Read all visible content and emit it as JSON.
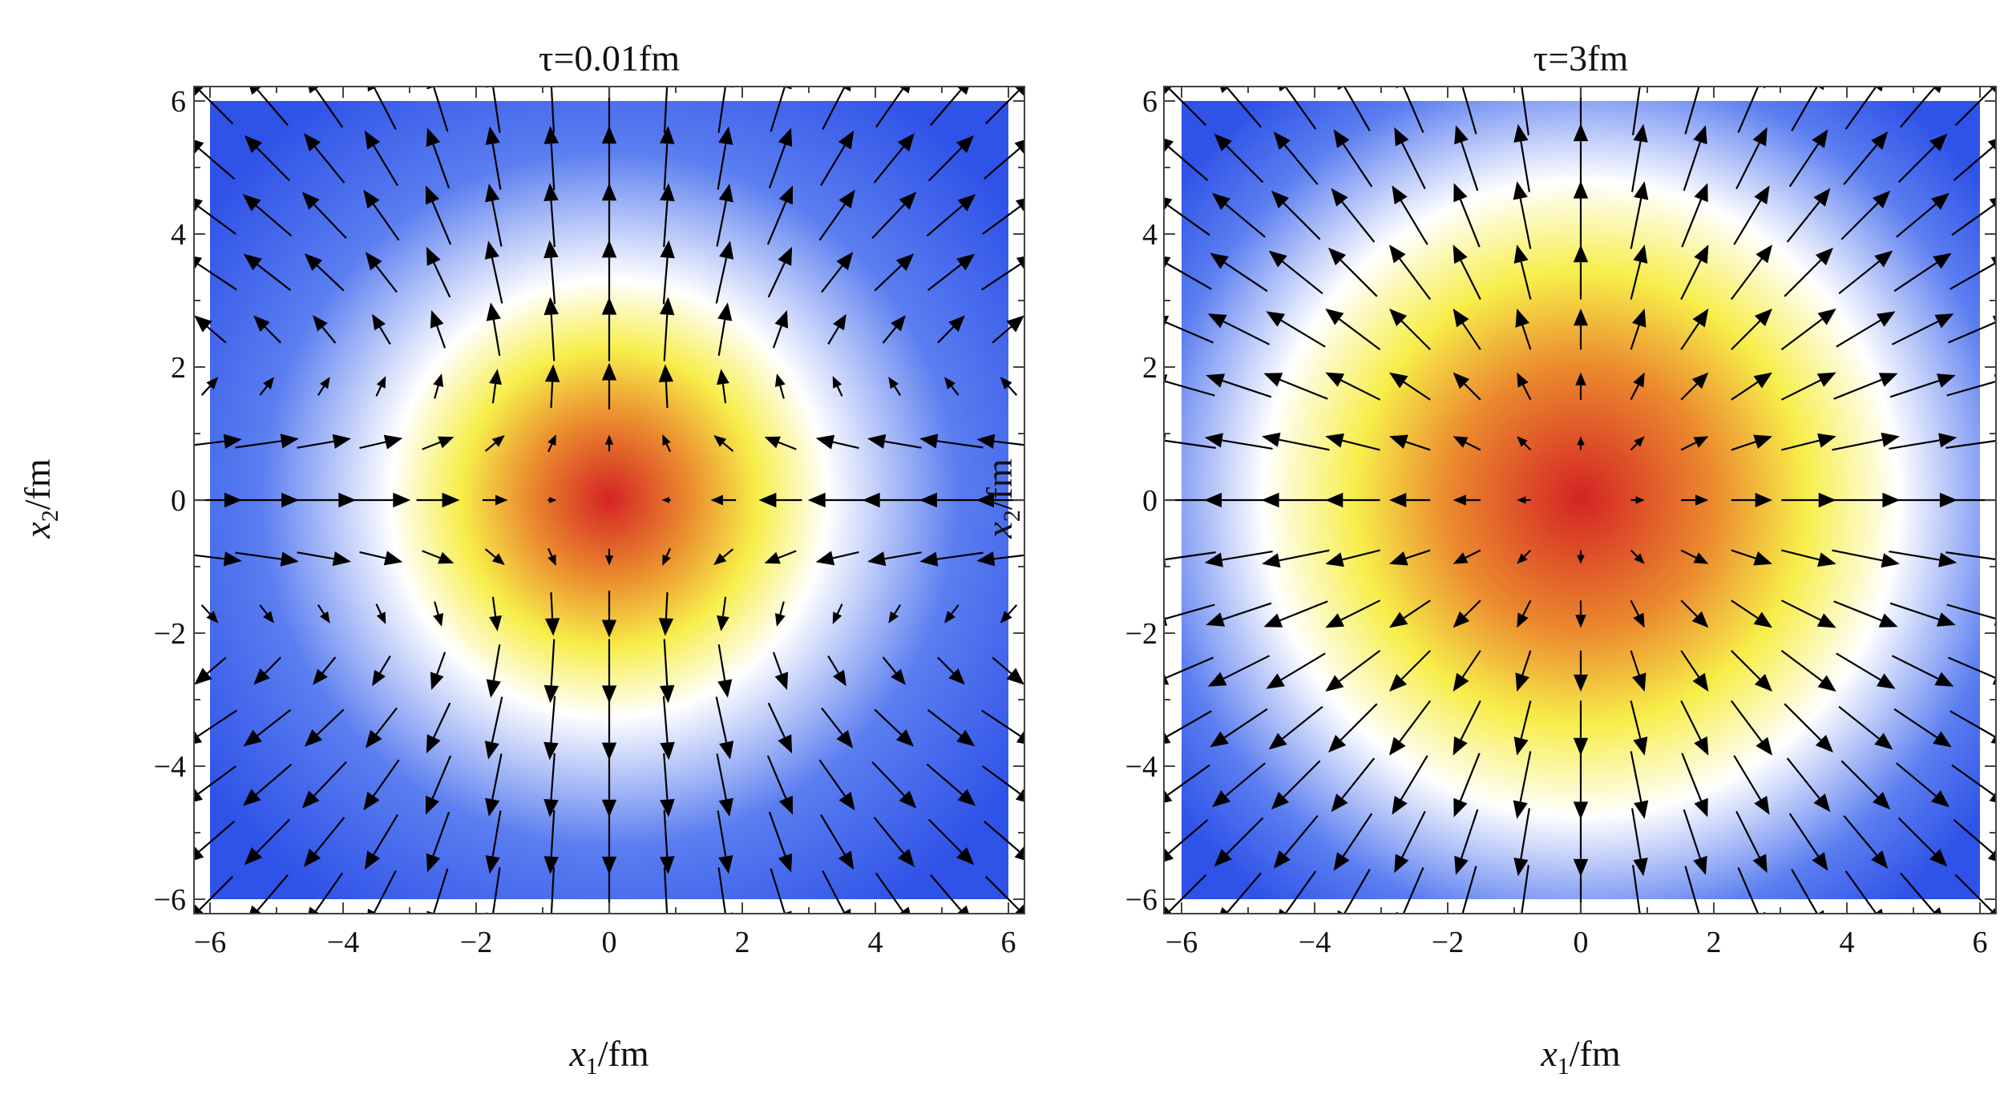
{
  "chart_data": [
    {
      "type": "heatmap",
      "title": "τ=0.01fm",
      "xlabel": {
        "base": "x",
        "sub": "1",
        "unit": "/fm"
      },
      "ylabel": {
        "base": "x",
        "sub": "2",
        "unit": "/fm"
      },
      "xlim": [
        -6,
        6
      ],
      "ylim": [
        -6,
        6
      ],
      "xticks": [
        "−6",
        "−4",
        "−2",
        "0",
        "2",
        "4",
        "6"
      ],
      "yticks": [
        "6",
        "4",
        "2",
        "0",
        "−2",
        "−4",
        "−6"
      ],
      "colormap": [
        "#2f52e8",
        "#ffffff",
        "#f6ea45",
        "#d62b2b"
      ],
      "density": {
        "center": [
          0,
          0
        ],
        "sigma_fm": 1.3
      },
      "vector_field": "quadrupolar flow: inward along x1 near x2≈0, outward along x2 near x1≈0, outward radial elsewhere"
    },
    {
      "type": "heatmap",
      "title": "τ=3fm",
      "xlabel": {
        "base": "x",
        "sub": "1",
        "unit": "/fm"
      },
      "ylabel": {
        "base": "x",
        "sub": "2",
        "unit": "/fm"
      },
      "xlim": [
        -6,
        6
      ],
      "ylim": [
        -6,
        6
      ],
      "xticks": [
        "−6",
        "−4",
        "−2",
        "0",
        "2",
        "4",
        "6"
      ],
      "yticks": [
        "6",
        "4",
        "2",
        "0",
        "−2",
        "−4",
        "−6"
      ],
      "colormap": [
        "#2f52e8",
        "#ffffff",
        "#f6ea45",
        "#d62b2b"
      ],
      "density": {
        "center": [
          0,
          0
        ],
        "sigma_fm": 2.6
      },
      "vector_field": "radial outward flow increasing with distance from origin"
    }
  ]
}
